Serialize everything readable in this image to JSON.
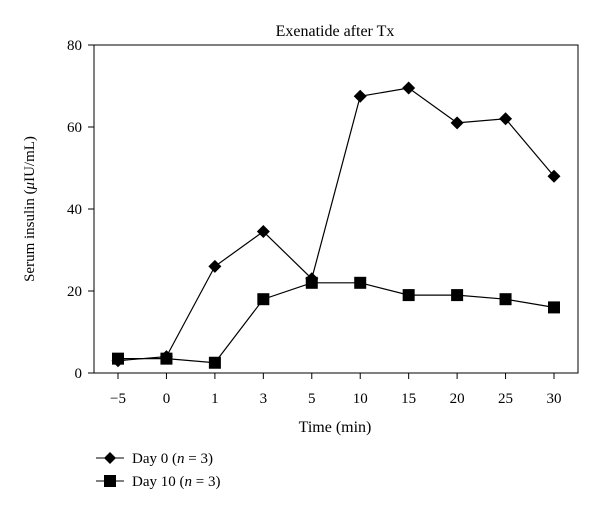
{
  "chart_data": {
    "type": "line",
    "title": "Exenatide after Tx",
    "xlabel": "Time (min)",
    "ylabel_prefix": "Serum insulin (",
    "ylabel_mu": "μ",
    "ylabel_suffix": "IU/mL)",
    "categories": [
      "−5",
      "0",
      "1",
      "3",
      "5",
      "10",
      "15",
      "20",
      "25",
      "30"
    ],
    "ylim": [
      0,
      80
    ],
    "yticks": [
      0,
      20,
      40,
      60,
      80
    ],
    "grid": false,
    "legend_position": "bottom-left",
    "series": [
      {
        "name": "Day 0",
        "n_label": "n",
        "n_value": "= 3",
        "marker": "diamond",
        "values": [
          3,
          4,
          26,
          34.5,
          23,
          67.5,
          69.5,
          61,
          62,
          48
        ]
      },
      {
        "name": "Day 10",
        "n_label": "n",
        "n_value": "= 3",
        "marker": "square",
        "values": [
          3.5,
          3.5,
          2.5,
          18,
          22,
          22,
          19,
          19,
          18,
          16
        ]
      }
    ],
    "colors": {
      "line": "#000000",
      "marker": "#000000",
      "axis": "#000000"
    }
  }
}
